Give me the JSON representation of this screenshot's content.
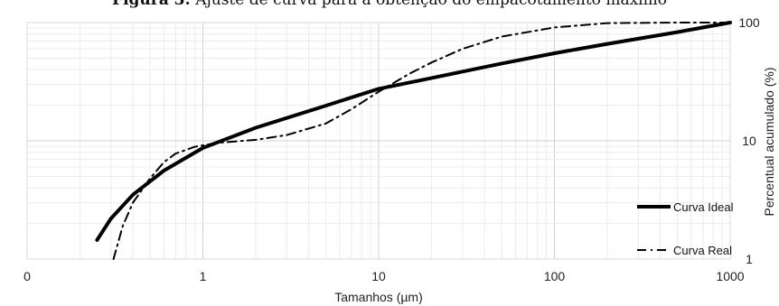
{
  "caption": {
    "label": "Figura 3:",
    "text": "Ajuste de curva para a obtenção do empacotamento máximo"
  },
  "chart_data": {
    "type": "line",
    "title": "",
    "xlabel": "Tamanhos (µm)",
    "ylabel": "Percentual acumulado (%)",
    "x_scale": "log",
    "y_scale": "log",
    "xlim": [
      0.1,
      1000
    ],
    "ylim": [
      1,
      100
    ],
    "x_tick_labels": [
      "0",
      "1",
      "10",
      "100",
      "1000"
    ],
    "y_tick_labels": [
      "1",
      "10",
      "100"
    ],
    "grid": true,
    "legend_position": "right",
    "series": [
      {
        "name": "Curva Ideal",
        "style": "solid",
        "color": "#000000",
        "points": [
          [
            0.25,
            1.45
          ],
          [
            0.3,
            2.2
          ],
          [
            0.4,
            3.5
          ],
          [
            0.6,
            5.6
          ],
          [
            1,
            8.7
          ],
          [
            2,
            12.9
          ],
          [
            5,
            19.8
          ],
          [
            10,
            27.5
          ],
          [
            20,
            34
          ],
          [
            50,
            45
          ],
          [
            100,
            55
          ],
          [
            200,
            66
          ],
          [
            500,
            83
          ],
          [
            1000,
            100
          ]
        ]
      },
      {
        "name": "Curva Real",
        "style": "dashdot",
        "color": "#000000",
        "points": [
          [
            0.31,
            1.0
          ],
          [
            0.35,
            1.9
          ],
          [
            0.4,
            3.0
          ],
          [
            0.5,
            4.8
          ],
          [
            0.6,
            6.6
          ],
          [
            0.7,
            7.8
          ],
          [
            0.9,
            8.9
          ],
          [
            1.2,
            9.6
          ],
          [
            2,
            10.2
          ],
          [
            3,
            11.2
          ],
          [
            5,
            14
          ],
          [
            7,
            18.5
          ],
          [
            10,
            26
          ],
          [
            15,
            37
          ],
          [
            20,
            46
          ],
          [
            30,
            60
          ],
          [
            50,
            76
          ],
          [
            100,
            91
          ],
          [
            200,
            99
          ],
          [
            500,
            100
          ],
          [
            1000,
            100
          ]
        ]
      }
    ]
  }
}
